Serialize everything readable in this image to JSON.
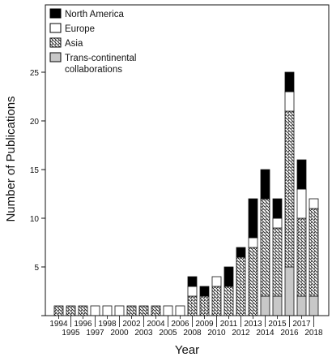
{
  "chart_data": {
    "type": "bar",
    "stacked": true,
    "categories": [
      "1994",
      "1995",
      "1996",
      "1997",
      "1998",
      "2000",
      "2002",
      "2003",
      "2004",
      "2005",
      "2006",
      "2008",
      "2009",
      "2010",
      "2011",
      "2012",
      "2013",
      "2014",
      "2015",
      "2016",
      "2017",
      "2018"
    ],
    "series": [
      {
        "name": "Trans-continental collaborations",
        "pattern": "gray",
        "color": "#c8c8c8",
        "values": [
          0,
          0,
          0,
          0,
          0,
          0,
          0,
          0,
          0,
          0,
          0,
          0,
          0,
          0,
          0,
          0,
          0,
          2,
          2,
          5,
          2,
          2
        ]
      },
      {
        "name": "Asia",
        "pattern": "hatch",
        "color": "#ffffff",
        "values": [
          1,
          1,
          1,
          0,
          0,
          0,
          1,
          1,
          1,
          0,
          0,
          2,
          2,
          3,
          3,
          6,
          7,
          10,
          7,
          16,
          8,
          9
        ]
      },
      {
        "name": "Europe",
        "pattern": "white",
        "color": "#ffffff",
        "values": [
          0,
          0,
          0,
          1,
          1,
          1,
          0,
          0,
          0,
          1,
          1,
          1,
          0,
          1,
          0,
          0,
          1,
          0,
          1,
          2,
          3,
          1
        ]
      },
      {
        "name": "North America",
        "pattern": "black",
        "color": "#000000",
        "values": [
          0,
          0,
          0,
          0,
          0,
          0,
          0,
          0,
          0,
          0,
          0,
          1,
          1,
          0,
          2,
          1,
          4,
          3,
          2,
          2,
          3,
          0
        ]
      }
    ],
    "xlabel": "Year",
    "ylabel": "Number of Publications",
    "ylim": [
      0,
      27
    ],
    "yticks": [
      0,
      5,
      10,
      15,
      20,
      25
    ],
    "grid": false,
    "legend_position": "top-left"
  }
}
